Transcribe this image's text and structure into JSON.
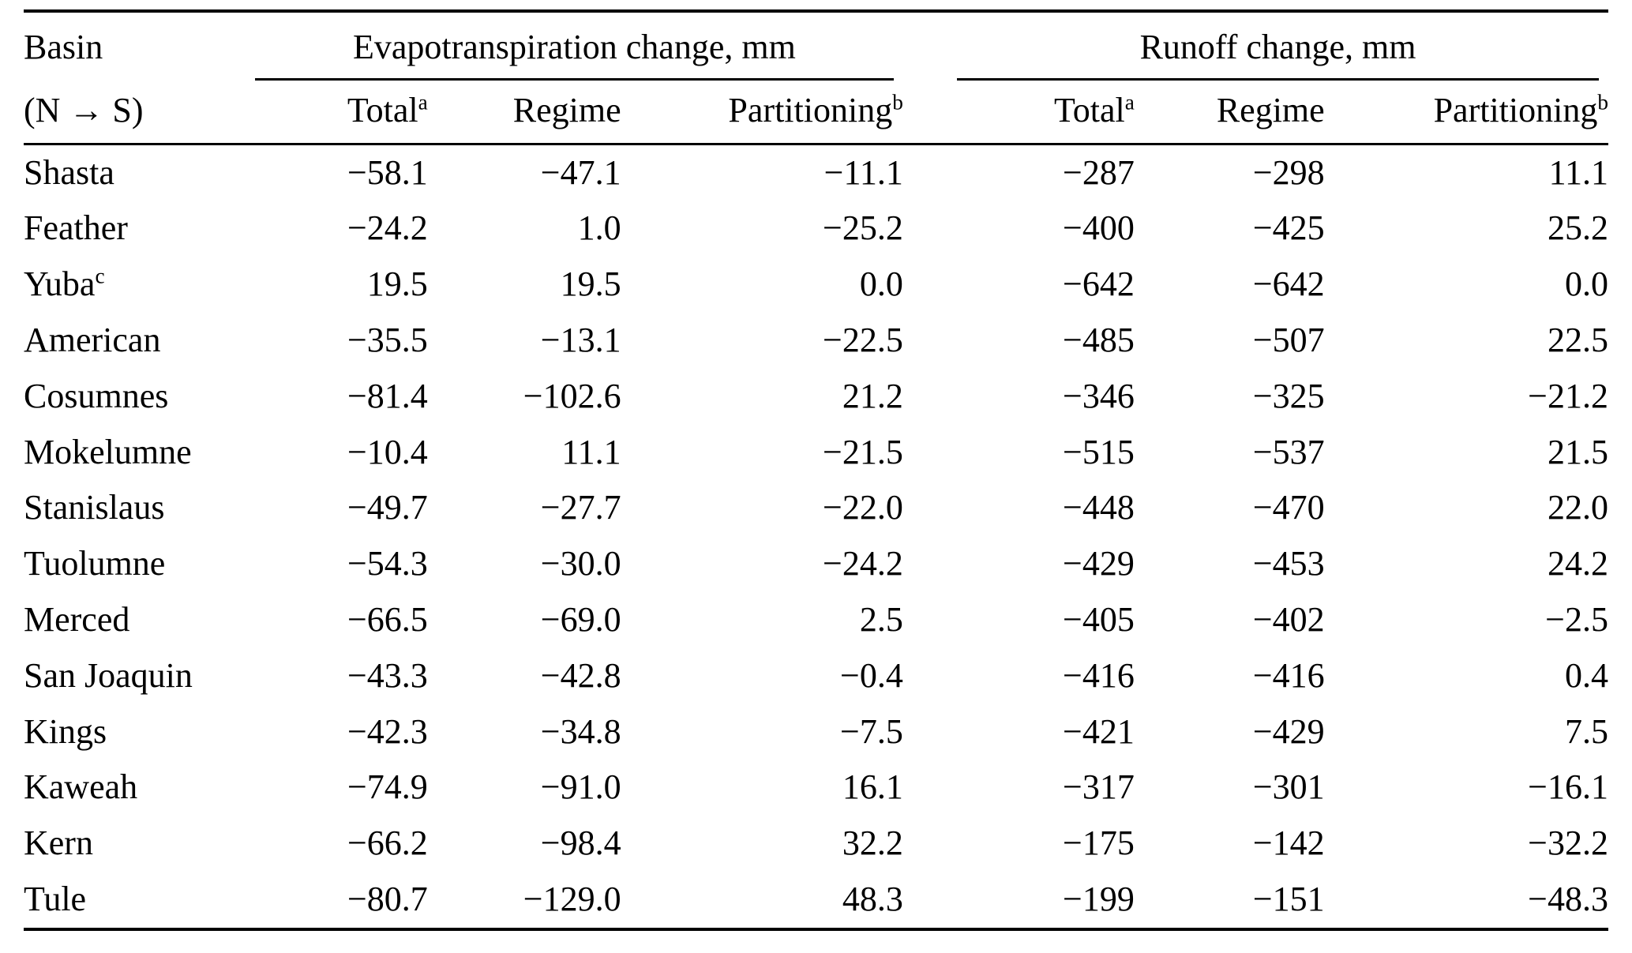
{
  "page": {
    "background_color": "#ffffff",
    "text_color": "#000000"
  },
  "table": {
    "header": {
      "basin_line1": "Basin",
      "basin_line2": "(N → S)",
      "group1": "Evapotranspiration change, mm",
      "group2": "Runoff change, mm",
      "cols": [
        {
          "label": "Total",
          "sup": "a"
        },
        {
          "label": "Regime",
          "sup": ""
        },
        {
          "label": "Partitioning",
          "sup": "b"
        },
        {
          "label": "Total",
          "sup": "a"
        },
        {
          "label": "Regime",
          "sup": ""
        },
        {
          "label": "Partitioning",
          "sup": "b"
        }
      ]
    },
    "rows": [
      {
        "basin": "Shasta",
        "sup": "",
        "values": [
          "−58.1",
          "−47.1",
          "−11.1",
          "−287",
          "−298",
          "11.1"
        ]
      },
      {
        "basin": "Feather",
        "sup": "",
        "values": [
          "−24.2",
          "1.0",
          "−25.2",
          "−400",
          "−425",
          "25.2"
        ]
      },
      {
        "basin": "Yuba",
        "sup": "c",
        "values": [
          "19.5",
          "19.5",
          "0.0",
          "−642",
          "−642",
          "0.0"
        ]
      },
      {
        "basin": "American",
        "sup": "",
        "values": [
          "−35.5",
          "−13.1",
          "−22.5",
          "−485",
          "−507",
          "22.5"
        ]
      },
      {
        "basin": "Cosumnes",
        "sup": "",
        "values": [
          "−81.4",
          "−102.6",
          "21.2",
          "−346",
          "−325",
          "−21.2"
        ]
      },
      {
        "basin": "Mokelumne",
        "sup": "",
        "values": [
          "−10.4",
          "11.1",
          "−21.5",
          "−515",
          "−537",
          "21.5"
        ]
      },
      {
        "basin": "Stanislaus",
        "sup": "",
        "values": [
          "−49.7",
          "−27.7",
          "−22.0",
          "−448",
          "−470",
          "22.0"
        ]
      },
      {
        "basin": "Tuolumne",
        "sup": "",
        "values": [
          "−54.3",
          "−30.0",
          "−24.2",
          "−429",
          "−453",
          "24.2"
        ]
      },
      {
        "basin": "Merced",
        "sup": "",
        "values": [
          "−66.5",
          "−69.0",
          "2.5",
          "−405",
          "−402",
          "−2.5"
        ]
      },
      {
        "basin": "San Joaquin",
        "sup": "",
        "values": [
          "−43.3",
          "−42.8",
          "−0.4",
          "−416",
          "−416",
          "0.4"
        ]
      },
      {
        "basin": "Kings",
        "sup": "",
        "values": [
          "−42.3",
          "−34.8",
          "−7.5",
          "−421",
          "−429",
          "7.5"
        ]
      },
      {
        "basin": "Kaweah",
        "sup": "",
        "values": [
          "−74.9",
          "−91.0",
          "16.1",
          "−317",
          "−301",
          "−16.1"
        ]
      },
      {
        "basin": "Kern",
        "sup": "",
        "values": [
          "−66.2",
          "−98.4",
          "32.2",
          "−175",
          "−142",
          "−32.2"
        ]
      },
      {
        "basin": "Tule",
        "sup": "",
        "values": [
          "−80.7",
          "−129.0",
          "48.3",
          "−199",
          "−151",
          "−48.3"
        ]
      }
    ]
  }
}
